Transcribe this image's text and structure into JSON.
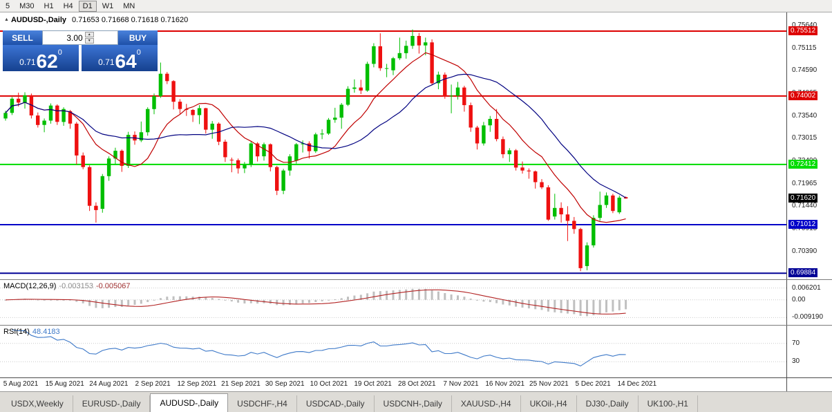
{
  "toolbar": {
    "timeframes": [
      {
        "label": "5"
      },
      {
        "label": "M30"
      },
      {
        "label": "H1"
      },
      {
        "label": "H4"
      },
      {
        "label": "D1",
        "active": true
      },
      {
        "label": "W1"
      },
      {
        "label": "MN"
      }
    ]
  },
  "chart": {
    "symbol_label": "AUDUSD-,Daily",
    "ohlc": "0.71653 0.71668 0.71618 0.71620"
  },
  "trade_panel": {
    "sell_label": "SELL",
    "buy_label": "BUY",
    "lot": "3.00",
    "sell_price": {
      "prefix": "0.71",
      "big": "62",
      "sup": "0"
    },
    "buy_price": {
      "prefix": "0.71",
      "big": "64",
      "sup": "0"
    }
  },
  "price_axis": {
    "ticks": [
      {
        "label": "0.75640",
        "value": 0.7564
      },
      {
        "label": "0.75115",
        "value": 0.75115
      },
      {
        "label": "0.74590",
        "value": 0.7459
      },
      {
        "label": "0.74065",
        "value": 0.74065
      },
      {
        "label": "0.73540",
        "value": 0.7354
      },
      {
        "label": "0.73015",
        "value": 0.73015
      },
      {
        "label": "0.72490",
        "value": 0.7249
      },
      {
        "label": "0.71965",
        "value": 0.71965
      },
      {
        "label": "0.71440",
        "value": 0.7144
      },
      {
        "label": "0.70915",
        "value": 0.70915
      },
      {
        "label": "0.70390",
        "value": 0.7039
      }
    ],
    "current": {
      "label": "0.71620",
      "value": 0.7162
    }
  },
  "macd": {
    "title": "MACD(12,26,9)",
    "value_main": "-0.003153",
    "value_signal": "-0.005067",
    "axis": [
      {
        "label": "0.006201",
        "value": 0.0062
      },
      {
        "label": "0.00",
        "value": 0
      },
      {
        "label": "-0.009190",
        "value": -0.00919
      }
    ]
  },
  "rsi": {
    "title": "RSI(14)",
    "value": "48.4183",
    "levels": [
      {
        "label": "70",
        "value": 70
      },
      {
        "label": "30",
        "value": 30
      }
    ]
  },
  "dates": [
    "5 Aug 2021",
    "15 Aug 2021",
    "24 Aug 2021",
    "2 Sep 2021",
    "12 Sep 2021",
    "21 Sep 2021",
    "30 Sep 2021",
    "10 Oct 2021",
    "19 Oct 2021",
    "28 Oct 2021",
    "7 Nov 2021",
    "16 Nov 2021",
    "25 Nov 2021",
    "5 Dec 2021",
    "14 Dec 2021"
  ],
  "tabs": [
    {
      "label": "USDX,Weekly"
    },
    {
      "label": "EURUSD-,Daily"
    },
    {
      "label": "AUDUSD-,Daily",
      "active": true
    },
    {
      "label": "USDCHF-,H4"
    },
    {
      "label": "USDCAD-,Daily"
    },
    {
      "label": "USDCNH-,Daily"
    },
    {
      "label": "XAUUSD-,H4"
    },
    {
      "label": "UKOil-,H4"
    },
    {
      "label": "DJ30-,Daily"
    },
    {
      "label": "UK100-,H1"
    }
  ],
  "colors": {
    "up": "#00BE00",
    "down": "#EE1010",
    "ma_fast": "#C00000",
    "ma_slow": "#000080",
    "macd_hist": "#C0C0C0",
    "macd_signal": "#B22222",
    "rsi_line": "#3C78C8",
    "current_bg": "#000000"
  },
  "chart_data": {
    "type": "candlestick",
    "symbol": "AUDUSD-",
    "timeframe": "Daily",
    "ylim": [
      0.69774,
      0.75785
    ],
    "hlines": [
      {
        "label": "0.75512",
        "price": 0.75512,
        "color": "#DD0000",
        "width": 2
      },
      {
        "label": "0.74002",
        "price": 0.74002,
        "color": "#DD0000",
        "width": 2
      },
      {
        "label": "0.72412",
        "price": 0.72412,
        "color": "#00DC00",
        "width": 2
      },
      {
        "label": "0.71012",
        "price": 0.71012,
        "color": "#0000C8",
        "width": 2
      },
      {
        "label": "0.69884",
        "price": 0.69884,
        "color": "#000096",
        "width": 2
      }
    ],
    "overlays": [
      {
        "name": "ma-fast-line",
        "type": "sma",
        "period": 10,
        "color": "#C00000"
      },
      {
        "name": "ma-slow-line",
        "type": "sma",
        "period": 21,
        "color": "#000080"
      }
    ],
    "candles": [
      [
        0.7348,
        0.7366,
        0.7343,
        0.7361
      ],
      [
        0.7361,
        0.7398,
        0.7356,
        0.7394
      ],
      [
        0.7394,
        0.7408,
        0.7376,
        0.7385
      ],
      [
        0.7385,
        0.7409,
        0.7371,
        0.7402
      ],
      [
        0.7402,
        0.7406,
        0.7348,
        0.7355
      ],
      [
        0.7355,
        0.7362,
        0.7327,
        0.7333
      ],
      [
        0.7333,
        0.7348,
        0.7316,
        0.7343
      ],
      [
        0.7343,
        0.7383,
        0.7336,
        0.7378
      ],
      [
        0.7378,
        0.7381,
        0.7333,
        0.734
      ],
      [
        0.734,
        0.7374,
        0.7331,
        0.737
      ],
      [
        0.7365,
        0.7368,
        0.7324,
        0.7336
      ],
      [
        0.7336,
        0.734,
        0.7241,
        0.7262
      ],
      [
        0.7262,
        0.7269,
        0.723,
        0.7235
      ],
      [
        0.7235,
        0.7239,
        0.7133,
        0.7145
      ],
      [
        0.7145,
        0.7153,
        0.7106,
        0.7135
      ],
      [
        0.7138,
        0.7219,
        0.7129,
        0.7214
      ],
      [
        0.7214,
        0.726,
        0.7203,
        0.7255
      ],
      [
        0.7255,
        0.728,
        0.7241,
        0.7273
      ],
      [
        0.7273,
        0.7276,
        0.7224,
        0.7238
      ],
      [
        0.7238,
        0.7317,
        0.7233,
        0.731
      ],
      [
        0.731,
        0.7318,
        0.7287,
        0.7297
      ],
      [
        0.7297,
        0.7341,
        0.7293,
        0.7316
      ],
      [
        0.7316,
        0.7374,
        0.7308,
        0.737
      ],
      [
        0.737,
        0.7406,
        0.7358,
        0.74
      ],
      [
        0.74,
        0.7478,
        0.7396,
        0.7452
      ],
      [
        0.7452,
        0.7456,
        0.7428,
        0.7435
      ],
      [
        0.7435,
        0.7437,
        0.7369,
        0.7387
      ],
      [
        0.7387,
        0.7393,
        0.7359,
        0.737
      ],
      [
        0.737,
        0.7382,
        0.7354,
        0.7368
      ],
      [
        0.7368,
        0.737,
        0.734,
        0.7356
      ],
      [
        0.7356,
        0.7379,
        0.7335,
        0.7372
      ],
      [
        0.7372,
        0.7373,
        0.7313,
        0.7322
      ],
      [
        0.7322,
        0.7342,
        0.7301,
        0.7336
      ],
      [
        0.7336,
        0.7339,
        0.7286,
        0.7294
      ],
      [
        0.7294,
        0.7299,
        0.7247,
        0.7258
      ],
      [
        0.7252,
        0.7257,
        0.7223,
        0.7251
      ],
      [
        0.7251,
        0.7255,
        0.722,
        0.7232
      ],
      [
        0.7232,
        0.7247,
        0.7221,
        0.724
      ],
      [
        0.724,
        0.7295,
        0.7235,
        0.729
      ],
      [
        0.729,
        0.7293,
        0.7248,
        0.726
      ],
      [
        0.726,
        0.7292,
        0.725,
        0.7288
      ],
      [
        0.7288,
        0.729,
        0.7225,
        0.7235
      ],
      [
        0.7235,
        0.7238,
        0.717,
        0.718
      ],
      [
        0.718,
        0.7231,
        0.7172,
        0.7227
      ],
      [
        0.7227,
        0.7265,
        0.7215,
        0.726
      ],
      [
        0.725,
        0.7291,
        0.7243,
        0.7288
      ],
      [
        0.7288,
        0.7297,
        0.7269,
        0.729
      ],
      [
        0.729,
        0.7295,
        0.7255,
        0.7272
      ],
      [
        0.7272,
        0.7315,
        0.7268,
        0.7311
      ],
      [
        0.7311,
        0.7323,
        0.73,
        0.7313
      ],
      [
        0.7313,
        0.7349,
        0.731,
        0.7345
      ],
      [
        0.7345,
        0.7373,
        0.7338,
        0.735
      ],
      [
        0.735,
        0.7384,
        0.7324,
        0.738
      ],
      [
        0.738,
        0.7423,
        0.7377,
        0.7417
      ],
      [
        0.7417,
        0.7439,
        0.7408,
        0.742
      ],
      [
        0.742,
        0.7438,
        0.7405,
        0.7413
      ],
      [
        0.7413,
        0.748,
        0.741,
        0.7475
      ],
      [
        0.7475,
        0.7523,
        0.7467,
        0.7516
      ],
      [
        0.7516,
        0.7546,
        0.7459,
        0.7465
      ],
      [
        0.7465,
        0.7475,
        0.7444,
        0.7465
      ],
      [
        0.746,
        0.7491,
        0.7449,
        0.7488
      ],
      [
        0.7488,
        0.7536,
        0.7484,
        0.75
      ],
      [
        0.75,
        0.7529,
        0.7487,
        0.7517
      ],
      [
        0.7517,
        0.7555,
        0.751,
        0.754
      ],
      [
        0.754,
        0.7547,
        0.7499,
        0.7518
      ],
      [
        0.7518,
        0.7536,
        0.7495,
        0.7525
      ],
      [
        0.7525,
        0.7532,
        0.7425,
        0.743
      ],
      [
        0.743,
        0.7457,
        0.7416,
        0.745
      ],
      [
        0.745,
        0.7455,
        0.7394,
        0.74
      ],
      [
        0.74,
        0.7427,
        0.736,
        0.7401
      ],
      [
        0.7401,
        0.7433,
        0.7392,
        0.742
      ],
      [
        0.742,
        0.7424,
        0.7364,
        0.7379
      ],
      [
        0.7379,
        0.7385,
        0.7317,
        0.7327
      ],
      [
        0.7327,
        0.7331,
        0.7276,
        0.729
      ],
      [
        0.729,
        0.734,
        0.7285,
        0.7332
      ],
      [
        0.7332,
        0.7354,
        0.7317,
        0.7347
      ],
      [
        0.7347,
        0.737,
        0.7295,
        0.73
      ],
      [
        0.73,
        0.7306,
        0.7256,
        0.7265
      ],
      [
        0.7265,
        0.7279,
        0.7247,
        0.7274
      ],
      [
        0.7274,
        0.7277,
        0.7227,
        0.7234
      ],
      [
        0.7234,
        0.7248,
        0.722,
        0.7227
      ],
      [
        0.7227,
        0.7232,
        0.7208,
        0.7225
      ],
      [
        0.7225,
        0.7227,
        0.7185,
        0.72
      ],
      [
        0.72,
        0.7207,
        0.7184,
        0.7188
      ],
      [
        0.7188,
        0.7193,
        0.711,
        0.7113
      ],
      [
        0.712,
        0.7173,
        0.7113,
        0.714
      ],
      [
        0.714,
        0.7153,
        0.7106,
        0.7125
      ],
      [
        0.7125,
        0.7144,
        0.7063,
        0.711
      ],
      [
        0.711,
        0.7119,
        0.708,
        0.7091
      ],
      [
        0.7091,
        0.7094,
        0.6993,
        0.7
      ],
      [
        0.7005,
        0.706,
        0.6995,
        0.7053
      ],
      [
        0.7053,
        0.7123,
        0.7048,
        0.7117
      ],
      [
        0.7117,
        0.7178,
        0.711,
        0.7147
      ],
      [
        0.7147,
        0.7176,
        0.714,
        0.7169
      ],
      [
        0.7169,
        0.7173,
        0.7128,
        0.7133
      ],
      [
        0.713,
        0.7169,
        0.7126,
        0.7164
      ],
      [
        0.71653,
        0.71668,
        0.71618,
        0.7162
      ]
    ]
  }
}
